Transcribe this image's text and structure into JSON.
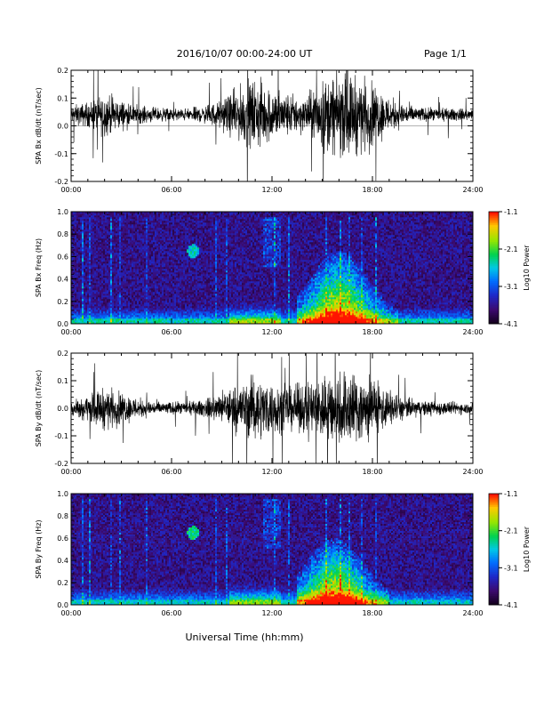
{
  "header": {
    "title": "2016/10/07  00:00-24:00 UT",
    "page": "Page 1/1"
  },
  "chart_data": [
    {
      "type": "line",
      "ylabel": "SPA Bx dB/dt (nT/sec)",
      "xlim": [
        0,
        24
      ],
      "ylim": [
        -0.2,
        0.2
      ],
      "x_ticks": [
        "00:00",
        "06:00",
        "12:00",
        "18:00",
        "24:00"
      ],
      "y_ticks": [
        "-0.2",
        "-0.1",
        "0.0",
        "0.1",
        "0.2"
      ],
      "series": [
        {
          "envelope_hours": [
            0,
            1,
            2,
            3,
            4,
            5,
            6,
            7,
            8,
            9,
            10,
            11,
            12,
            13,
            14,
            15,
            16,
            17,
            18,
            19,
            20,
            21,
            22,
            23,
            24
          ],
          "envelope_amplitude": [
            0.05,
            0.07,
            0.12,
            0.08,
            0.05,
            0.04,
            0.035,
            0.035,
            0.05,
            0.08,
            0.15,
            0.2,
            0.15,
            0.12,
            0.1,
            0.2,
            0.22,
            0.22,
            0.18,
            0.1,
            0.06,
            0.04,
            0.035,
            0.035,
            0.03
          ],
          "baseline": 0.04
        }
      ]
    },
    {
      "type": "heatmap",
      "ylabel": "SPA Bx Freq (Hz)",
      "xlim": [
        0,
        24
      ],
      "ylim": [
        0.0,
        1.0
      ],
      "x_ticks": [
        "00:00",
        "06:00",
        "12:00",
        "18:00",
        "24:00"
      ],
      "y_ticks": [
        "0.0",
        "0.2",
        "0.4",
        "0.6",
        "0.8",
        "1.0"
      ],
      "colorbar": {
        "label": "Log10 Power",
        "ticks": [
          "-1.1",
          "-2.1",
          "-3.1",
          "-4.1"
        ],
        "range": [
          -4.1,
          -1.1
        ]
      },
      "features": [
        {
          "name": "broadband-enhancement",
          "t_start": 13.5,
          "t_end": 19.5,
          "f_max": 0.6,
          "peak_log_power": -1.5
        },
        {
          "name": "pc1-patch",
          "t_center": 7.3,
          "f_center": 0.65,
          "log_power": -2.8
        },
        {
          "name": "low-frequency-floor",
          "f_max": 0.05,
          "log_power": -2.2
        }
      ]
    },
    {
      "type": "line",
      "ylabel": "SPA By dB/dt (nT/sec)",
      "xlim": [
        0,
        24
      ],
      "ylim": [
        -0.2,
        0.2
      ],
      "x_ticks": [
        "00:00",
        "06:00",
        "12:00",
        "18:00",
        "24:00"
      ],
      "y_ticks": [
        "-0.2",
        "-0.1",
        "0.0",
        "0.1",
        "0.2"
      ],
      "series": [
        {
          "envelope_hours": [
            0,
            1,
            2,
            3,
            4,
            5,
            6,
            7,
            8,
            9,
            10,
            11,
            12,
            13,
            14,
            15,
            16,
            17,
            18,
            19,
            20,
            21,
            22,
            23,
            24
          ],
          "envelope_amplitude": [
            0.05,
            0.07,
            0.12,
            0.09,
            0.06,
            0.04,
            0.035,
            0.035,
            0.05,
            0.09,
            0.14,
            0.18,
            0.15,
            0.12,
            0.14,
            0.2,
            0.22,
            0.22,
            0.18,
            0.1,
            0.06,
            0.045,
            0.04,
            0.035,
            0.03
          ],
          "baseline": 0.0
        }
      ]
    },
    {
      "type": "heatmap",
      "ylabel": "SPA By Freq (Hz)",
      "xlim": [
        0,
        24
      ],
      "ylim": [
        0.0,
        1.0
      ],
      "x_ticks": [
        "00:00",
        "06:00",
        "12:00",
        "18:00",
        "24:00"
      ],
      "y_ticks": [
        "0.0",
        "0.2",
        "0.4",
        "0.6",
        "0.8",
        "1.0"
      ],
      "colorbar": {
        "label": "Log10 Power",
        "ticks": [
          "-1.1",
          "-2.1",
          "-3.1",
          "-4.1"
        ],
        "range": [
          -4.1,
          -1.1
        ]
      },
      "features": [
        {
          "name": "broadband-enhancement",
          "t_start": 13.5,
          "t_end": 19.0,
          "f_max": 0.55,
          "peak_log_power": -1.6
        },
        {
          "name": "pc1-patch",
          "t_center": 7.3,
          "f_center": 0.65,
          "log_power": -2.6
        },
        {
          "name": "low-frequency-floor",
          "f_max": 0.05,
          "log_power": -2.3
        }
      ]
    }
  ],
  "footer": {
    "xlabel": "Universal Time (hh:mm)"
  }
}
